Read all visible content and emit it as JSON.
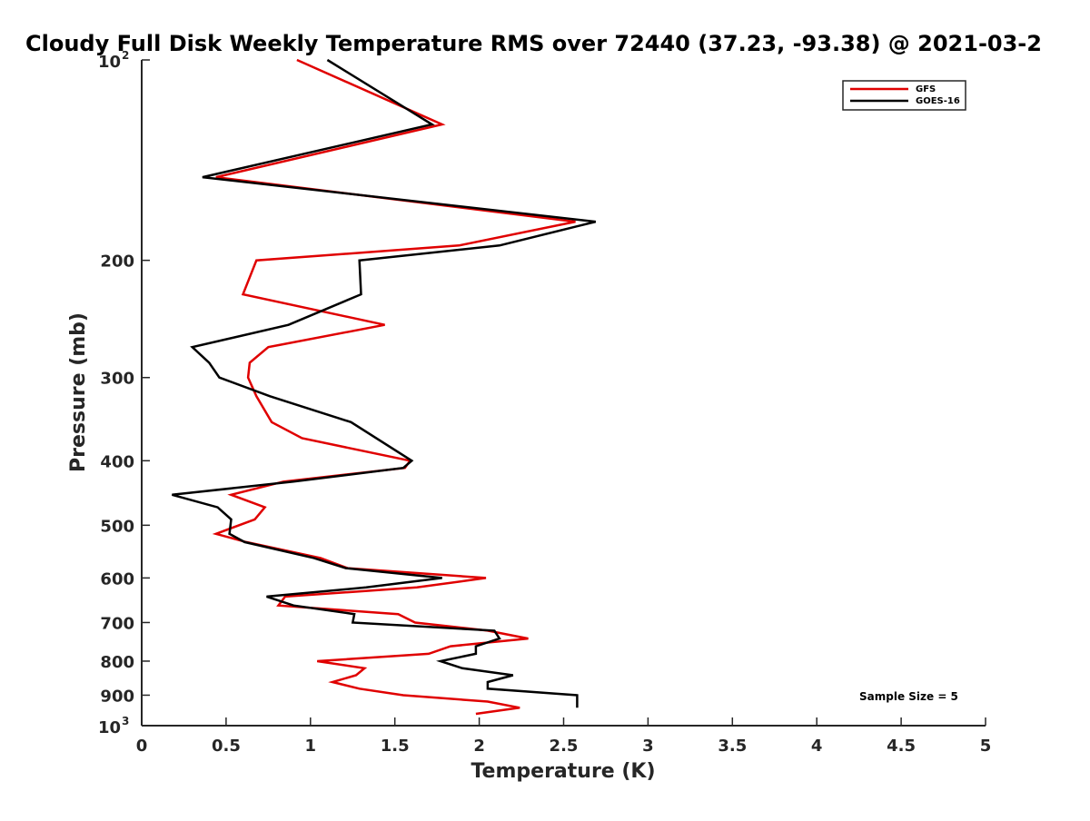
{
  "chart_data": {
    "type": "line",
    "title": "Cloudy Full Disk Weekly Temperature RMS over 72440 (37.23, -93.38) @ 2021-03-2",
    "xlabel": "Temperature (K)",
    "ylabel": "Pressure (mb)",
    "xlim": [
      0,
      5
    ],
    "ylim": [
      100,
      1000
    ],
    "y_scale": "log",
    "y_reversed": true,
    "grid": false,
    "legend_position": "top-right",
    "x_ticks": [
      "0",
      "0.5",
      "1",
      "1.5",
      "2",
      "2.5",
      "3",
      "3.5",
      "4",
      "4.5",
      "5"
    ],
    "y_ticks": [
      {
        "value": 100,
        "base": "10",
        "exp": "2"
      },
      {
        "value": 200,
        "label": "200"
      },
      {
        "value": 300,
        "label": "300"
      },
      {
        "value": 400,
        "label": "400"
      },
      {
        "value": 500,
        "label": "500"
      },
      {
        "value": 600,
        "label": "600"
      },
      {
        "value": 700,
        "label": "700"
      },
      {
        "value": 800,
        "label": "800"
      },
      {
        "value": 900,
        "label": "900"
      },
      {
        "value": 1000,
        "base": "10",
        "exp": "3"
      }
    ],
    "annotation": "Sample Size = 5",
    "series": [
      {
        "name": "GFS",
        "color": "#e00000",
        "points": [
          [
            0.92,
            100
          ],
          [
            1.78,
            125
          ],
          [
            0.44,
            150
          ],
          [
            2.57,
            175
          ],
          [
            1.88,
            190
          ],
          [
            0.68,
            200
          ],
          [
            0.6,
            225
          ],
          [
            1.44,
            250
          ],
          [
            0.75,
            270
          ],
          [
            0.64,
            285
          ],
          [
            0.63,
            300
          ],
          [
            0.68,
            320
          ],
          [
            0.77,
            350
          ],
          [
            0.95,
            370
          ],
          [
            1.59,
            400
          ],
          [
            1.56,
            410
          ],
          [
            0.84,
            430
          ],
          [
            0.53,
            450
          ],
          [
            0.73,
            470
          ],
          [
            0.67,
            490
          ],
          [
            0.44,
            515
          ],
          [
            0.62,
            530
          ],
          [
            1.06,
            560
          ],
          [
            1.22,
            580
          ],
          [
            2.04,
            600
          ],
          [
            1.63,
            620
          ],
          [
            0.85,
            640
          ],
          [
            0.81,
            660
          ],
          [
            1.52,
            680
          ],
          [
            1.62,
            700
          ],
          [
            2.05,
            720
          ],
          [
            2.29,
            740
          ],
          [
            1.83,
            760
          ],
          [
            1.7,
            780
          ],
          [
            1.04,
            800
          ],
          [
            1.32,
            820
          ],
          [
            1.27,
            840
          ],
          [
            1.13,
            860
          ],
          [
            1.29,
            880
          ],
          [
            1.55,
            900
          ],
          [
            2.05,
            920
          ],
          [
            2.24,
            940
          ],
          [
            1.98,
            960
          ]
        ]
      },
      {
        "name": "GOES-16",
        "color": "#000000",
        "points": [
          [
            1.1,
            100
          ],
          [
            1.72,
            125
          ],
          [
            0.36,
            150
          ],
          [
            2.69,
            175
          ],
          [
            2.12,
            190
          ],
          [
            1.29,
            200
          ],
          [
            1.3,
            225
          ],
          [
            0.87,
            250
          ],
          [
            0.3,
            270
          ],
          [
            0.4,
            285
          ],
          [
            0.46,
            300
          ],
          [
            0.76,
            320
          ],
          [
            1.24,
            350
          ],
          [
            1.6,
            400
          ],
          [
            1.55,
            410
          ],
          [
            0.9,
            430
          ],
          [
            0.18,
            450
          ],
          [
            0.45,
            470
          ],
          [
            0.53,
            490
          ],
          [
            0.52,
            515
          ],
          [
            0.61,
            530
          ],
          [
            1.02,
            560
          ],
          [
            1.21,
            580
          ],
          [
            1.78,
            600
          ],
          [
            1.33,
            620
          ],
          [
            0.74,
            640
          ],
          [
            0.9,
            660
          ],
          [
            1.26,
            680
          ],
          [
            1.25,
            700
          ],
          [
            2.09,
            720
          ],
          [
            2.12,
            740
          ],
          [
            1.98,
            760
          ],
          [
            1.98,
            780
          ],
          [
            1.77,
            800
          ],
          [
            1.9,
            820
          ],
          [
            2.2,
            840
          ],
          [
            2.05,
            860
          ],
          [
            2.05,
            880
          ],
          [
            2.58,
            900
          ],
          [
            2.58,
            940
          ]
        ]
      }
    ]
  }
}
